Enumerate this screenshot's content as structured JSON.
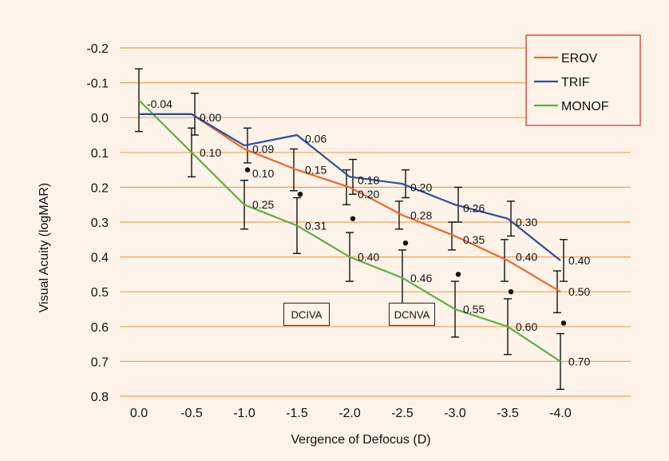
{
  "chart_data": {
    "type": "line",
    "title": "",
    "xlabel": "Vergence of Defocus (D)",
    "ylabel": "Visual Acuity (logMAR)",
    "x": [
      0.0,
      -0.5,
      -1.0,
      -1.5,
      -2.0,
      -2.5,
      -3.0,
      -3.5,
      -4.0
    ],
    "x_tick_labels": [
      "0.0",
      "-0.5",
      "-1.0",
      "-1.5",
      "-2.0",
      "-2.5",
      "-3.0",
      "-3.5",
      "-4.0"
    ],
    "ylim": [
      -0.2,
      0.8
    ],
    "y_inverted": true,
    "y_ticks": [
      -0.2,
      -0.1,
      0.0,
      0.1,
      0.2,
      0.3,
      0.4,
      0.5,
      0.6,
      0.7,
      0.8
    ],
    "y_tick_labels": [
      "-0.2",
      "-0.1",
      "0.0",
      "0.1",
      "0.2",
      "0.3",
      "0.4",
      "0.5",
      "0.6",
      "0.7",
      "0.8"
    ],
    "grid": true,
    "legend_position": "top-right",
    "series": [
      {
        "name": "EROV",
        "color": "#f0662e",
        "values": [
          -0.01,
          -0.01,
          0.09,
          0.15,
          0.2,
          0.28,
          0.34,
          0.41,
          0.5
        ],
        "error_bar": [
          null,
          null,
          null,
          0.06,
          0.05,
          0.04,
          0.04,
          0.06,
          0.06
        ]
      },
      {
        "name": "TRIF",
        "color": "#2b4ea2",
        "values": [
          -0.01,
          -0.01,
          0.08,
          0.05,
          0.17,
          0.19,
          0.25,
          0.29,
          0.41
        ],
        "error_bar": [
          null,
          0.06,
          0.05,
          null,
          0.05,
          0.04,
          0.05,
          0.05,
          0.06
        ]
      },
      {
        "name": "MONOF",
        "color": "#5fae45",
        "values": [
          -0.05,
          0.1,
          0.25,
          0.31,
          0.4,
          0.46,
          0.55,
          0.6,
          0.7
        ],
        "error_bar": [
          0.09,
          0.07,
          0.07,
          0.08,
          0.07,
          0.08,
          0.08,
          0.08,
          0.08
        ]
      }
    ],
    "point_labels": [
      {
        "text": "-0.04",
        "x": 0.0,
        "y": -0.04
      },
      {
        "text": "0.00",
        "x": -0.5,
        "y": 0.0
      },
      {
        "text": "0.10",
        "x": -0.5,
        "y": 0.1
      },
      {
        "text": "0.09",
        "x": -1.0,
        "y": 0.09
      },
      {
        "text": "0.10",
        "x": -1.0,
        "y": 0.16
      },
      {
        "text": "0.25",
        "x": -1.0,
        "y": 0.25
      },
      {
        "text": "0.06",
        "x": -1.5,
        "y": 0.06
      },
      {
        "text": "0.15",
        "x": -1.5,
        "y": 0.15
      },
      {
        "text": "0.31",
        "x": -1.5,
        "y": 0.31
      },
      {
        "text": "0.18",
        "x": -2.0,
        "y": 0.18
      },
      {
        "text": "0.20",
        "x": -2.0,
        "y": 0.22
      },
      {
        "text": "0.40",
        "x": -2.0,
        "y": 0.4
      },
      {
        "text": "0.20",
        "x": -2.5,
        "y": 0.2
      },
      {
        "text": "0.28",
        "x": -2.5,
        "y": 0.28
      },
      {
        "text": "0.46",
        "x": -2.5,
        "y": 0.46
      },
      {
        "text": "0.26",
        "x": -3.0,
        "y": 0.26
      },
      {
        "text": "0.35",
        "x": -3.0,
        "y": 0.35
      },
      {
        "text": "0.55",
        "x": -3.0,
        "y": 0.55
      },
      {
        "text": "0.30",
        "x": -3.5,
        "y": 0.3
      },
      {
        "text": "0.40",
        "x": -3.5,
        "y": 0.4
      },
      {
        "text": "0.60",
        "x": -3.5,
        "y": 0.6
      },
      {
        "text": "0.40",
        "x": -4.0,
        "y": 0.41
      },
      {
        "text": "0.50",
        "x": -4.0,
        "y": 0.5
      },
      {
        "text": "0.70",
        "x": -4.0,
        "y": 0.7
      }
    ],
    "dots": [
      {
        "x": -1.0,
        "y": 0.15
      },
      {
        "x": -1.5,
        "y": 0.22
      },
      {
        "x": -2.0,
        "y": 0.29
      },
      {
        "x": -2.5,
        "y": 0.36
      },
      {
        "x": -3.0,
        "y": 0.45
      },
      {
        "x": -3.5,
        "y": 0.5
      },
      {
        "x": -4.0,
        "y": 0.59
      }
    ],
    "annotations": [
      {
        "text": "DCIVA",
        "x": -1.5,
        "y": 0.56
      },
      {
        "text": "DCNVA",
        "x": -2.5,
        "y": 0.56
      }
    ]
  }
}
